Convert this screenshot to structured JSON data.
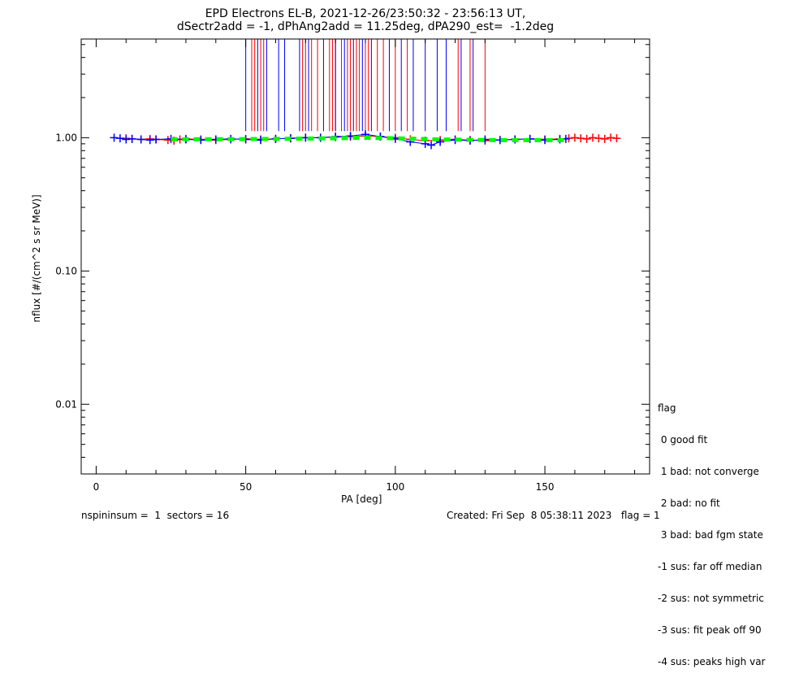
{
  "title": {
    "line1": "EPD Electrons EL-B, 2021-12-26/23:50:32 - 23:56:13 UT,",
    "line2": "dSectr2add = -1, dPhAng2add = 11.25deg, dPA290_est=  -1.2deg"
  },
  "legend": {
    "title": "flag",
    "items": [
      " 0 good fit",
      " 1 bad: not converge",
      " 2 bad: no fit",
      " 3 bad: bad fgm state",
      "-1 sus: far off median",
      "-2 sus: not symmetric",
      "-3 sus: fit peak off 90",
      "-4 sus: peaks high var"
    ]
  },
  "footer": {
    "left": "nspininsum =  1  sectors = 16",
    "right": "Created: Fri Sep  8 05:38:11 2023   flag = 1"
  },
  "colors": {
    "red": "#ff0000",
    "blue": "#0000ff",
    "green": "#00ff00",
    "axis": "#000000"
  },
  "chart_data": {
    "type": "scatter",
    "xlabel": "PA [deg]",
    "ylabel": "nflux [#/(cm^2 s sr MeV)]",
    "xlim": [
      -5,
      185
    ],
    "ylim": [
      0.003,
      5.5
    ],
    "yscale": "log",
    "xticks": [
      0,
      50,
      100,
      150
    ],
    "xtick_labels": [
      "0",
      "50",
      "100",
      "150"
    ],
    "yticks": [
      0.01,
      0.1,
      1.0
    ],
    "ytick_labels": [
      "0.01",
      "0.10",
      "1.00"
    ],
    "grid": false,
    "series": [
      {
        "color": "red",
        "marker": "plus",
        "x": [
          10,
          12,
          15,
          18,
          20,
          24,
          26,
          28,
          30,
          35,
          40,
          45,
          50,
          55,
          60,
          65,
          70,
          75,
          80,
          85,
          90,
          95,
          100,
          105,
          110,
          115,
          120,
          125,
          130,
          135,
          140,
          145,
          150,
          155,
          158,
          160,
          162,
          164,
          166,
          168,
          170,
          172,
          174
        ],
        "y": [
          0.99,
          0.98,
          0.97,
          0.98,
          0.97,
          0.96,
          0.95,
          0.97,
          0.98,
          0.97,
          0.96,
          0.97,
          0.98,
          0.97,
          0.98,
          0.99,
          1.0,
          1.0,
          1.01,
          1.02,
          1.03,
          1.02,
          1.0,
          0.97,
          0.95,
          0.96,
          0.97,
          0.96,
          0.95,
          0.96,
          0.97,
          0.98,
          0.97,
          0.98,
          0.99,
          1.0,
          0.99,
          0.98,
          1.0,
          0.99,
          0.98,
          1.0,
          0.99
        ]
      },
      {
        "color": "blue",
        "marker": "plus",
        "x": [
          6,
          8,
          10,
          12,
          15,
          18,
          20,
          25,
          30,
          35,
          40,
          45,
          50,
          55,
          60,
          65,
          70,
          75,
          80,
          85,
          90,
          95,
          100,
          105,
          110,
          112,
          115,
          120,
          125,
          130,
          135,
          140,
          145,
          150,
          155,
          157
        ],
        "y": [
          1.0,
          0.99,
          0.97,
          0.98,
          0.97,
          0.96,
          0.97,
          0.98,
          0.97,
          0.96,
          0.97,
          0.98,
          0.97,
          0.96,
          0.98,
          0.99,
          1.0,
          1.0,
          1.02,
          1.03,
          1.06,
          1.02,
          0.98,
          0.93,
          0.9,
          0.88,
          0.93,
          0.96,
          0.95,
          0.97,
          0.96,
          0.97,
          0.98,
          0.96,
          0.97,
          0.98
        ]
      },
      {
        "color": "green",
        "style": "dashed-fit",
        "x": [
          25,
          40,
          55,
          70,
          85,
          90,
          100,
          115,
          130,
          145,
          158
        ],
        "y": [
          0.975,
          0.975,
          0.978,
          0.985,
          0.995,
          0.998,
          0.99,
          0.97,
          0.96,
          0.958,
          0.96
        ]
      }
    ],
    "vertical_lines": {
      "red": [
        52,
        53,
        55,
        56,
        69,
        70,
        72,
        74,
        78,
        79,
        80,
        82,
        84,
        85,
        87,
        88,
        90,
        91,
        94,
        96,
        100,
        104,
        121,
        125,
        130
      ],
      "blue": [
        50,
        54,
        57,
        61,
        63,
        68,
        71,
        76,
        80,
        83,
        86,
        89,
        92,
        98,
        102,
        106,
        110,
        114,
        117,
        122,
        126
      ],
      "top": 5.5,
      "bottom": 1.12
    }
  }
}
